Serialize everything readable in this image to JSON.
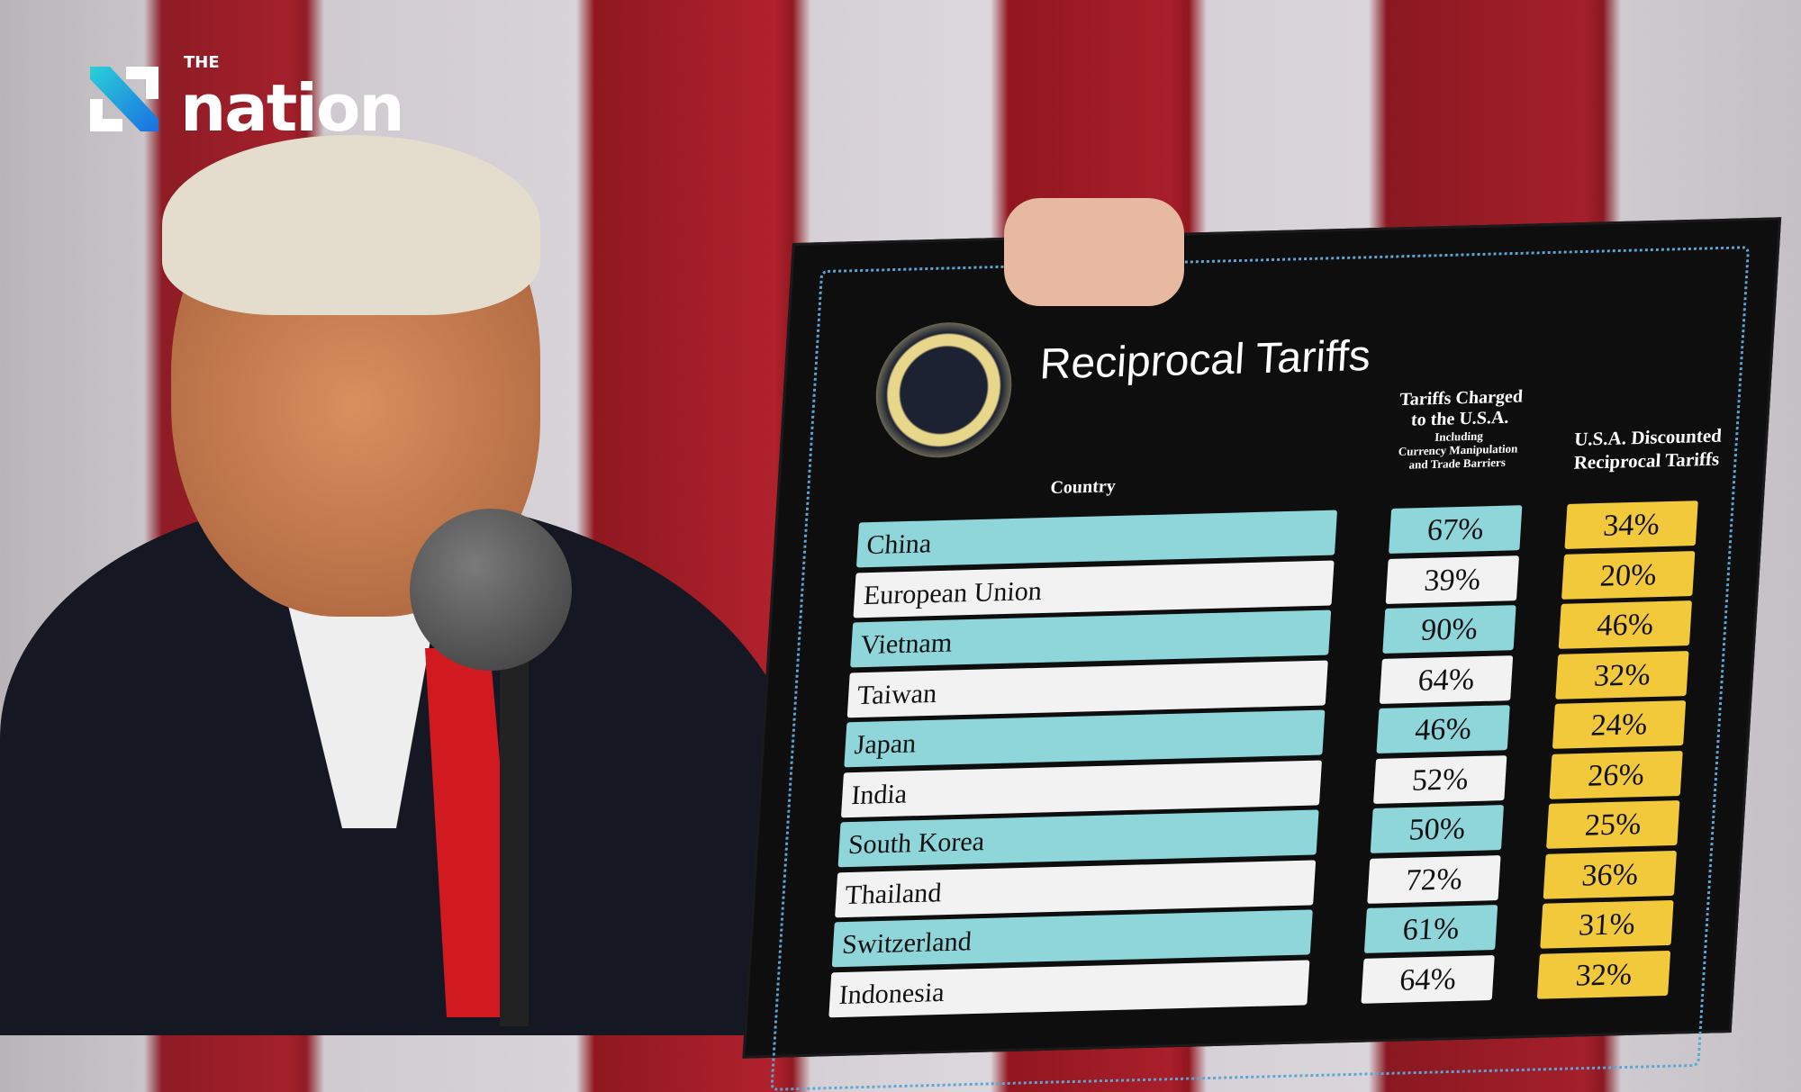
{
  "logo": {
    "small": "THE",
    "word": "nation",
    "colors": {
      "accent": "#1fa8e0"
    }
  },
  "board": {
    "title": "Reciprocal Tariffs",
    "seal_text": "SEAL OF THE PRESIDENT OF THE UNITED STATES",
    "headers": {
      "country": "Country",
      "charged_line1": "Tariffs Charged",
      "charged_line2": "to the U.S.A.",
      "charged_line3": "Including",
      "charged_line4": "Currency Manipulation",
      "charged_line5": "and Trade Barriers",
      "discounted_line1": "U.S.A. Discounted",
      "discounted_line2": "Reciprocal Tariffs"
    },
    "rows": [
      {
        "country": "China",
        "charged": "67%",
        "discounted": "34%"
      },
      {
        "country": "European Union",
        "charged": "39%",
        "discounted": "20%"
      },
      {
        "country": "Vietnam",
        "charged": "90%",
        "discounted": "46%"
      },
      {
        "country": "Taiwan",
        "charged": "64%",
        "discounted": "32%"
      },
      {
        "country": "Japan",
        "charged": "46%",
        "discounted": "24%"
      },
      {
        "country": "India",
        "charged": "52%",
        "discounted": "26%"
      },
      {
        "country": "South Korea",
        "charged": "50%",
        "discounted": "25%"
      },
      {
        "country": "Thailand",
        "charged": "72%",
        "discounted": "36%"
      },
      {
        "country": "Switzerland",
        "charged": "61%",
        "discounted": "31%"
      },
      {
        "country": "Indonesia",
        "charged": "64%",
        "discounted": "32%"
      }
    ],
    "colors": {
      "teal": "#8fd6da",
      "white": "#f2f2f2",
      "gold": "#f2c93a",
      "board": "#0e0e0f"
    }
  }
}
